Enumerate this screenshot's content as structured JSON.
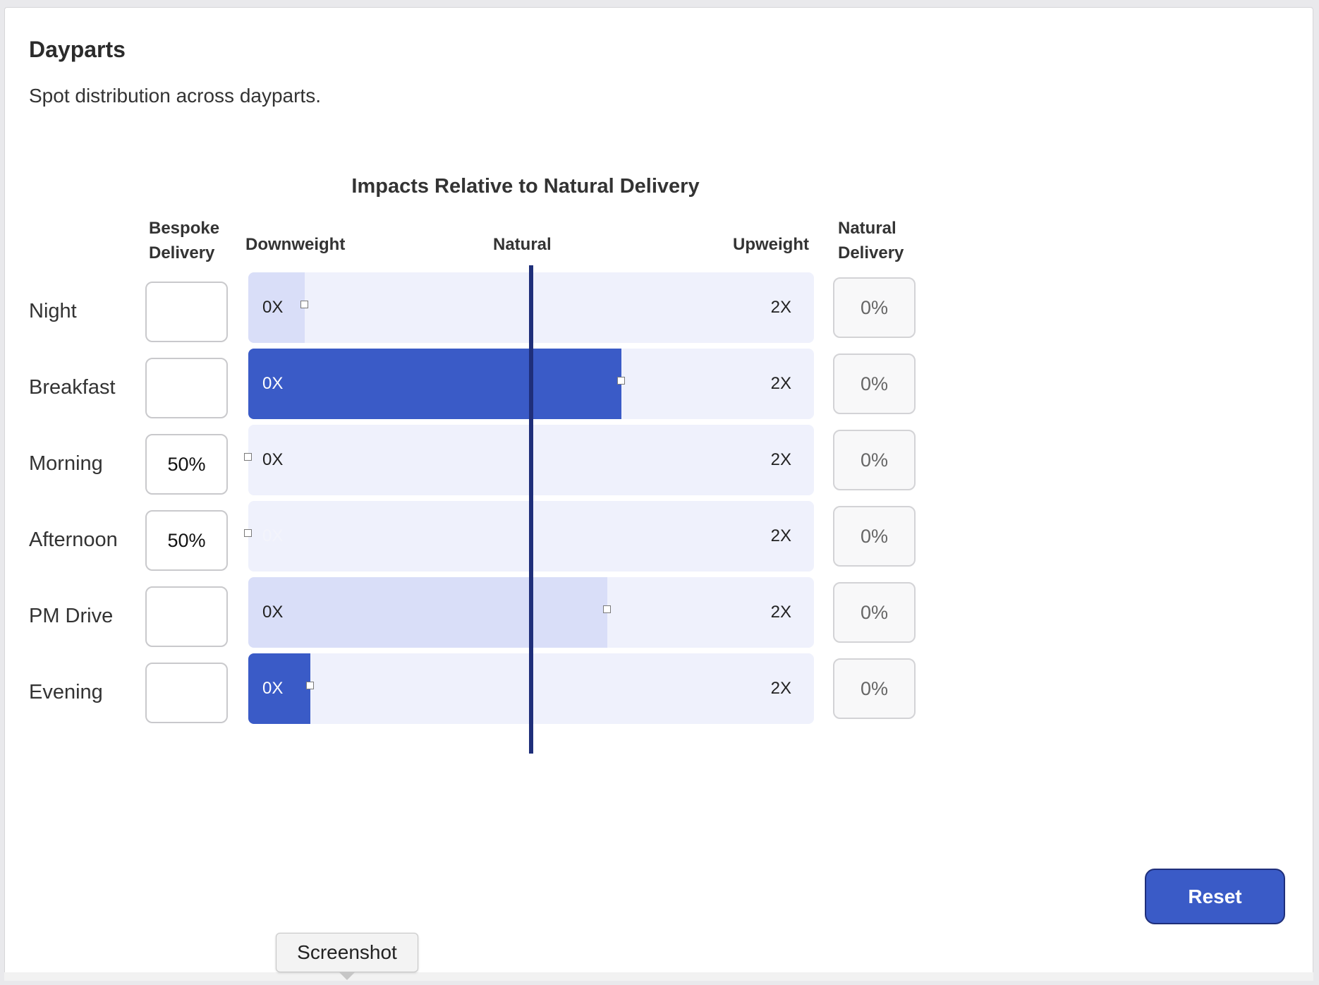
{
  "section": {
    "title": "Dayparts",
    "subtitle": "Spot distribution across dayparts."
  },
  "chart": {
    "heading": "Impacts Relative to Natural Delivery",
    "col_bespoke_line1": "Bespoke",
    "col_bespoke_line2": "Delivery",
    "col_downweight": "Downweight",
    "col_natural": "Natural",
    "col_upweight": "Upweight",
    "col_natural_delivery_line1": "Natural",
    "col_natural_delivery_line2": "Delivery",
    "min_label": "0X",
    "max_label": "2X"
  },
  "rows": [
    {
      "label": "Night",
      "bespoke": "",
      "slider_value": 0.1,
      "fill_style": "light",
      "natural_delivery": "0%"
    },
    {
      "label": "Breakfast",
      "bespoke": "",
      "slider_value": 0.66,
      "fill_style": "dark",
      "natural_delivery": "0%"
    },
    {
      "label": "Morning",
      "bespoke": "50%",
      "slider_value": 0.0,
      "fill_style": "none",
      "natural_delivery": "0%"
    },
    {
      "label": "Afternoon",
      "bespoke": "50%",
      "slider_value": 0.0,
      "fill_style": "none",
      "natural_delivery": "0%"
    },
    {
      "label": "PM Drive",
      "bespoke": "",
      "slider_value": 0.635,
      "fill_style": "light",
      "natural_delivery": "0%"
    },
    {
      "label": "Evening",
      "bespoke": "",
      "slider_value": 0.11,
      "fill_style": "dark",
      "natural_delivery": "0%"
    }
  ],
  "actions": {
    "reset_label": "Reset"
  },
  "tooltip": {
    "text": "Screenshot"
  },
  "colors": {
    "accent": "#3a5bc7",
    "natural_line": "#1f2f7a",
    "track": "#eff1fc",
    "light_fill": "#d9def8"
  }
}
